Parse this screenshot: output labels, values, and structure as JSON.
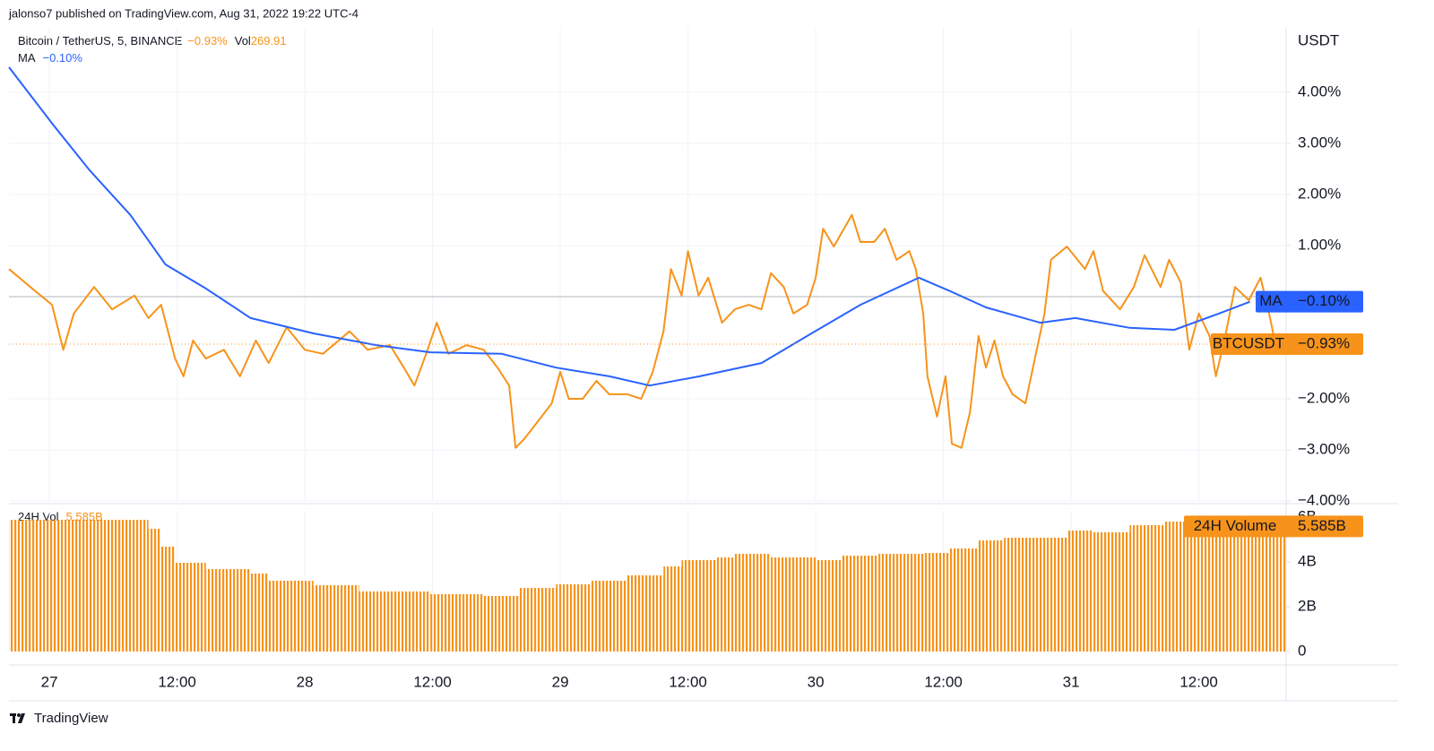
{
  "header": "jalonso7 published on TradingView.com, Aug 31, 2022 19:22 UTC-4",
  "footer": "TradingView",
  "chart_data": [
    {
      "type": "line",
      "title": "Bitcoin / TetherUS, 5, BINANCE",
      "volume_label": "Vol",
      "volume_value": 269.91,
      "y_unit": "USDT",
      "baseline": 0,
      "grid": true,
      "xlim": [
        -3.8,
        116.2
      ],
      "ylim": [
        -4,
        5.28
      ],
      "yticks": [
        {
          "value": 4,
          "label": "4.00%"
        },
        {
          "value": 3,
          "label": "3.00%"
        },
        {
          "value": 2,
          "label": "2.00%"
        },
        {
          "value": 1,
          "label": "1.00%"
        },
        {
          "value": -2,
          "label": "−2.00%"
        },
        {
          "value": -3,
          "label": "−3.00%"
        },
        {
          "value": -4,
          "label": "−4.00%"
        }
      ],
      "series": [
        {
          "name": "BTCUSDT",
          "color": "#f7931a",
          "last_value": {
            "value": -0.93,
            "label": "−0.93%"
          },
          "x": [
            -3.8,
            -1.8,
            0.25,
            1.3,
            2.3,
            4.2,
            5.9,
            8,
            9.3,
            10.5,
            11.8,
            12.6,
            13.5,
            14.7,
            16.4,
            17.9,
            19.4,
            20.6,
            22.3,
            24,
            25.7,
            28.2,
            29.9,
            32,
            33.3,
            34.3,
            35.4,
            36.4,
            37.5,
            39.2,
            40.8,
            42.1,
            43.2,
            43.8,
            44.6,
            45.9,
            47.2,
            48,
            48.8,
            50.1,
            51.4,
            52.6,
            54.3,
            55.6,
            56.7,
            57.7,
            58.4,
            59.4,
            60,
            61,
            61.9,
            63.2,
            64.4,
            65.7,
            66.9,
            67.8,
            69,
            69.9,
            71.2,
            72,
            72.7,
            73.7,
            75.4,
            76.2,
            77.5,
            78.5,
            79.6,
            80.8,
            81.4,
            82.1,
            82.5,
            83.4,
            84.2,
            84.8,
            85.7,
            86.5,
            87.3,
            88,
            88.8,
            89.6,
            90.5,
            91.7,
            92.6,
            93.5,
            94.1,
            95.6,
            97.3,
            98.1,
            99,
            100.6,
            101.9,
            102.9,
            104.4,
            105.2,
            106.3,
            107.1,
            108,
            109,
            109.6,
            110.4,
            111.4,
            112.7,
            113.8,
            114.6,
            115.2
          ],
          "values": [
            0.54,
            0.19,
            -0.16,
            -1.04,
            -0.33,
            0.19,
            -0.25,
            0.02,
            -0.42,
            -0.16,
            -1.21,
            -1.56,
            -0.86,
            -1.21,
            -1.04,
            -1.56,
            -0.86,
            -1.3,
            -0.6,
            -1.04,
            -1.12,
            -0.68,
            -1.04,
            -0.95,
            -1.39,
            -1.74,
            -1.12,
            -0.51,
            -1.12,
            -0.95,
            -1.04,
            -1.39,
            -1.74,
            -2.96,
            -2.79,
            -2.44,
            -2.09,
            -1.47,
            -2,
            -2,
            -1.65,
            -1.91,
            -1.91,
            -2,
            -1.47,
            -0.68,
            0.54,
            0.02,
            0.89,
            0.02,
            0.37,
            -0.51,
            -0.25,
            -0.16,
            -0.25,
            0.46,
            0.19,
            -0.33,
            -0.16,
            0.37,
            1.33,
            0.98,
            1.6,
            1.07,
            1.07,
            1.33,
            0.72,
            0.89,
            0.54,
            -0.33,
            -1.56,
            -2.35,
            -1.56,
            -2.88,
            -2.96,
            -2.26,
            -0.77,
            -1.39,
            -0.86,
            -1.56,
            -1.91,
            -2.09,
            -1.21,
            -0.33,
            0.72,
            0.98,
            0.54,
            0.89,
            0.11,
            -0.25,
            0.19,
            0.81,
            0.19,
            0.72,
            0.28,
            -1.04,
            -0.33,
            -0.77,
            -1.56,
            -0.86,
            0.19,
            -0.07,
            0.37,
            -0.33,
            -0.93
          ]
        },
        {
          "name": "MA",
          "color": "#2962ff",
          "last_value": {
            "value": -0.1,
            "label": "−0.10%"
          },
          "x": [
            -3.8,
            0.4,
            3.8,
            7.6,
            10.9,
            14.7,
            18.9,
            24.8,
            30.7,
            35.8,
            42.5,
            47.6,
            52.6,
            56.4,
            61.1,
            66.9,
            71.2,
            76.2,
            81.7,
            84.6,
            88,
            93.1,
            96.4,
            101.5,
            105.7,
            109.9,
            112.8
          ],
          "values": [
            4.49,
            3.35,
            2.47,
            1.6,
            0.63,
            0.16,
            -0.42,
            -0.72,
            -0.95,
            -1.09,
            -1.12,
            -1.39,
            -1.56,
            -1.74,
            -1.56,
            -1.3,
            -0.77,
            -0.16,
            0.37,
            0.11,
            -0.21,
            -0.51,
            -0.42,
            -0.61,
            -0.65,
            -0.33,
            -0.1
          ]
        }
      ]
    },
    {
      "type": "bar",
      "title": "24H Vol",
      "xlim": [
        -3.8,
        116.2
      ],
      "ylim": [
        0,
        6.28
      ],
      "yticks": [
        0,
        {
          "value": 2,
          "label": "2B"
        },
        {
          "value": 4,
          "label": "4B"
        },
        {
          "value": 6,
          "label": "6B"
        }
      ],
      "xticks": [
        {
          "value": 0,
          "label": "27"
        },
        {
          "value": 12,
          "label": "12:00"
        },
        {
          "value": 24,
          "label": "28"
        },
        {
          "value": 36,
          "label": "12:00"
        },
        {
          "value": 48,
          "label": "29"
        },
        {
          "value": 60,
          "label": "12:00"
        },
        {
          "value": 72,
          "label": "30"
        },
        {
          "value": 84,
          "label": "12:00"
        },
        {
          "value": 96,
          "label": "31"
        },
        {
          "value": 108,
          "label": "12:00"
        }
      ],
      "series": [
        {
          "name": "24H Volume",
          "color": "#f7931a",
          "last_value": {
            "value": 5.585,
            "label": "5.585B"
          },
          "x": [
            -3.8,
            8,
            9.3,
            10.5,
            11.8,
            14.7,
            18.9,
            20.6,
            24.8,
            29.1,
            33.3,
            35.8,
            40.8,
            42.5,
            44.2,
            47.6,
            50.9,
            54.3,
            57.7,
            59.4,
            62.7,
            64.4,
            67.8,
            72,
            74.5,
            77.9,
            82.1,
            84.6,
            87.2,
            89.7,
            93.9,
            95.6,
            98.1,
            101.5,
            104.8,
            107.4,
            111.6,
            115.4
          ],
          "values": [
            5.88,
            5.88,
            5.48,
            4.68,
            3.96,
            3.68,
            3.48,
            3.16,
            2.96,
            2.68,
            2.68,
            2.56,
            2.48,
            2.48,
            2.84,
            3,
            3.16,
            3.4,
            3.8,
            4.08,
            4.2,
            4.36,
            4.2,
            4.08,
            4.28,
            4.36,
            4.4,
            4.6,
            4.96,
            5.08,
            5.08,
            5.4,
            5.32,
            5.64,
            5.8,
            5.88,
            5.88,
            5.585
          ]
        }
      ]
    }
  ]
}
